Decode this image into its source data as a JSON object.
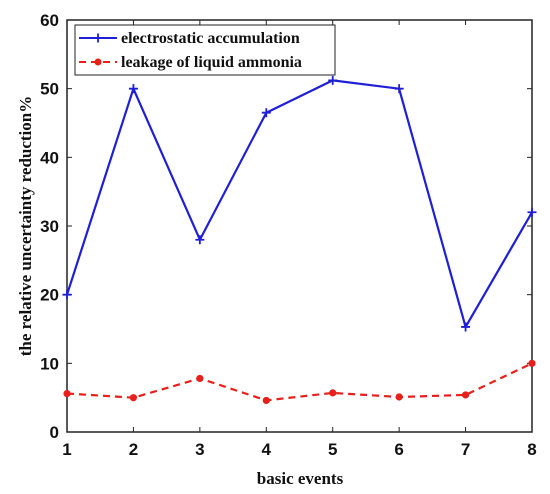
{
  "chart_data": {
    "type": "line",
    "xlabel": "basic events",
    "ylabel": "the relative uncertainty reduction%",
    "xlim": [
      1,
      8
    ],
    "ylim": [
      0,
      60
    ],
    "x": [
      1,
      2,
      3,
      4,
      5,
      6,
      7,
      8
    ],
    "xticks": [
      "1",
      "2",
      "3",
      "4",
      "5",
      "6",
      "7",
      "8"
    ],
    "yticks": [
      "0",
      "10",
      "20",
      "30",
      "40",
      "50",
      "60"
    ],
    "grid": false,
    "legend_position": "top-left",
    "series": [
      {
        "name": "electrostatic accumulation",
        "values": [
          20,
          50,
          28,
          46.5,
          51.2,
          50,
          15.3,
          32
        ],
        "color": "#1f1fd6",
        "line_style": "solid",
        "marker": "plus"
      },
      {
        "name": "leakage of liquid ammonia",
        "values": [
          5.6,
          5.0,
          7.8,
          4.6,
          5.7,
          5.1,
          5.4,
          10
        ],
        "color": "#e8201b",
        "line_style": "dashed",
        "marker": "dot"
      }
    ]
  }
}
